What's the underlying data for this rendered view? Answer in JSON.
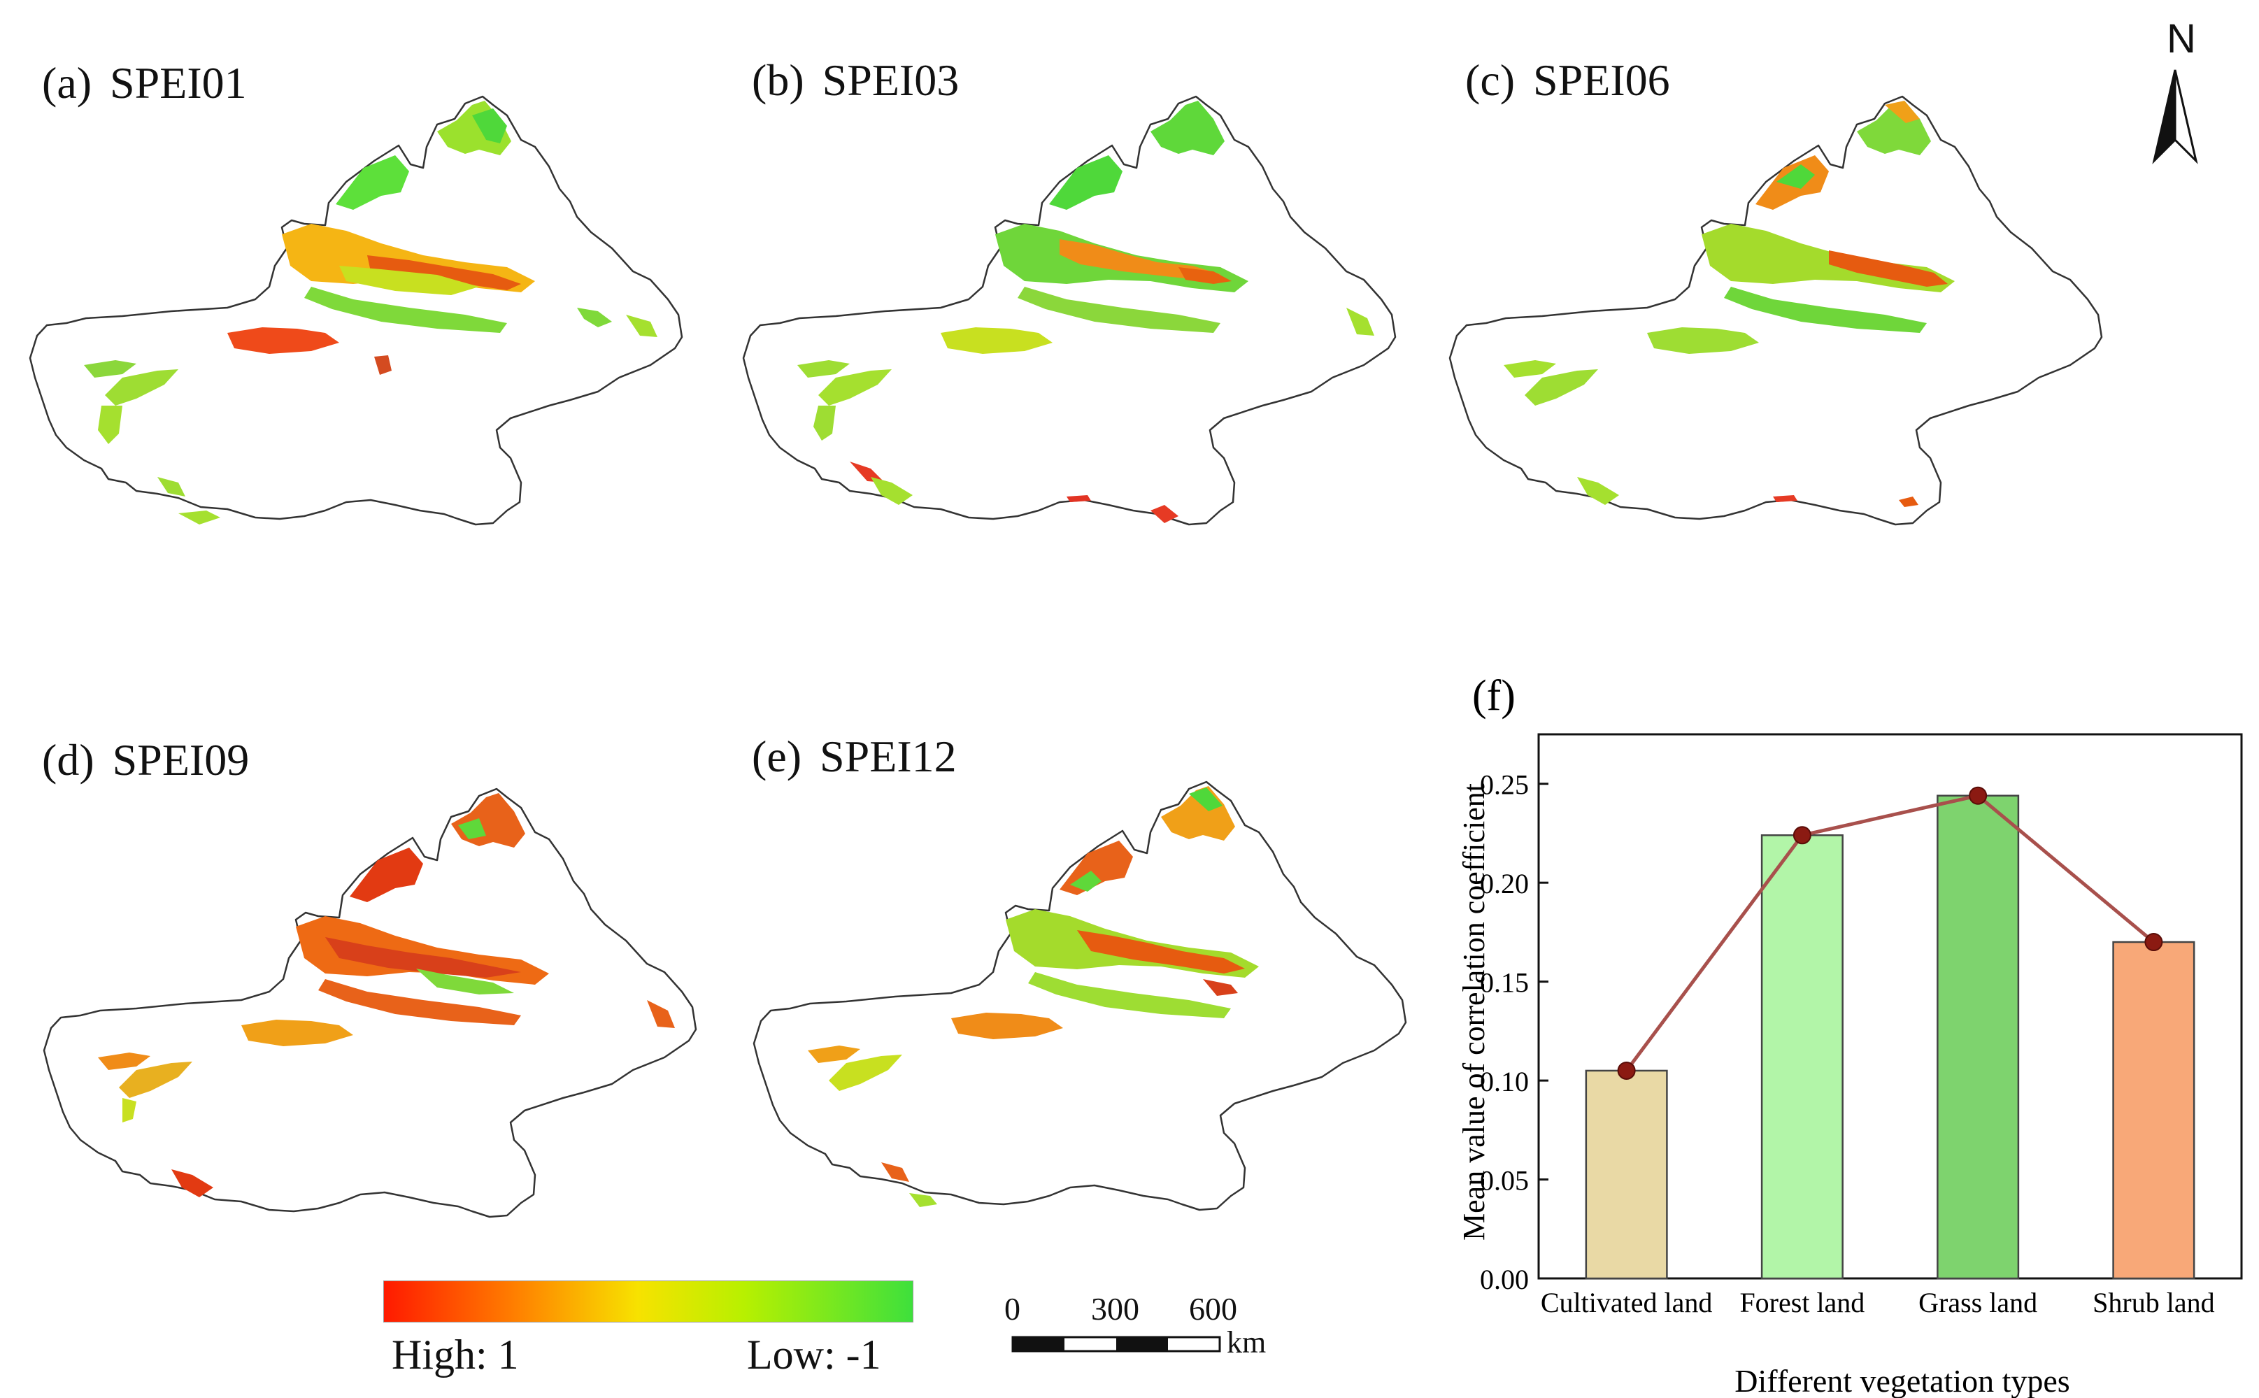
{
  "panels": [
    {
      "tag": "(a)",
      "name": "SPEI01"
    },
    {
      "tag": "(b)",
      "name": "SPEI03"
    },
    {
      "tag": "(c)",
      "name": "SPEI06"
    },
    {
      "tag": "(d)",
      "name": "SPEI09"
    },
    {
      "tag": "(e)",
      "name": "SPEI12"
    }
  ],
  "north": "N",
  "legend": {
    "high": "High: 1",
    "low": "Low: -1",
    "colors": [
      "#ff1a00",
      "#ff8000",
      "#f7e200",
      "#b8f000",
      "#3ee03c"
    ]
  },
  "scale": {
    "ticks": [
      "0",
      "300",
      "600"
    ],
    "unit": "km"
  },
  "chart_data": {
    "type": "bar",
    "panel_tag": "(f)",
    "categories": [
      "Cultivated land",
      "Forest land",
      "Grass land",
      "Shrub land"
    ],
    "values": [
      0.105,
      0.224,
      0.244,
      0.17
    ],
    "bar_colors": [
      "#e9d9a5",
      "#b2f5a8",
      "#7ed36e",
      "#f8a878"
    ],
    "line_overlay": {
      "values": [
        0.105,
        0.224,
        0.244,
        0.17
      ],
      "color": "#a8504c",
      "marker_color": "#8b1a12"
    },
    "xlabel": "Different vegetation types",
    "ylabel": "Mean value of correlation coefficient",
    "ylim": [
      0,
      0.275
    ],
    "yticks": [
      "0.00",
      "0.05",
      "0.10",
      "0.15",
      "0.20",
      "0.25"
    ]
  }
}
